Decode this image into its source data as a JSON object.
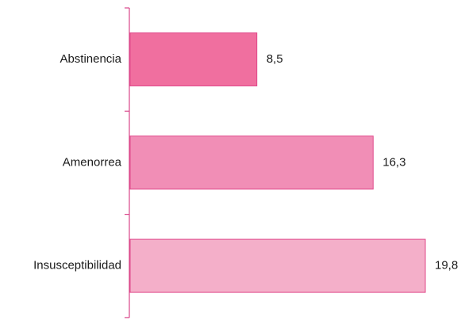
{
  "chart_data": {
    "type": "bar",
    "orientation": "horizontal",
    "categories": [
      "Abstinencia",
      "Amenorrea",
      "Insusceptibilidad"
    ],
    "values": [
      8.5,
      16.3,
      19.8
    ],
    "value_labels": [
      "8,5",
      "16,3",
      "19,8"
    ],
    "xlim": [
      0,
      19.8
    ],
    "grid": false,
    "legend": "none",
    "colors": {
      "bars": [
        "#f06f9f",
        "#f18eb6",
        "#f4afc9"
      ],
      "bar_border": "#e0488a",
      "axis": "#d9468a"
    }
  }
}
